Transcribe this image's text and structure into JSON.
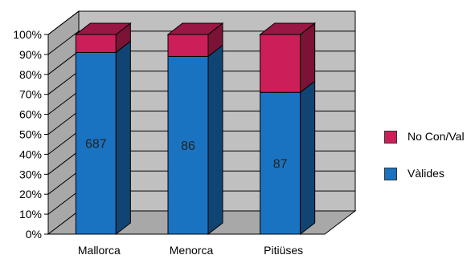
{
  "chart_data": {
    "type": "bar",
    "stacked": true,
    "percent_stacked": true,
    "three_d": true,
    "categories": [
      "Mallorca",
      "Menorca",
      "Pitiüses"
    ],
    "series": [
      {
        "name": "Vàlides",
        "values": [
          91,
          89,
          71
        ],
        "data_labels": [
          "687",
          "86",
          "87"
        ],
        "color": "#1a73c0"
      },
      {
        "name": "No Con/Val",
        "values": [
          9,
          11,
          29
        ],
        "color": "#cc1f5a"
      }
    ],
    "y_ticks": [
      "0%",
      "10%",
      "20%",
      "30%",
      "40%",
      "50%",
      "60%",
      "70%",
      "80%",
      "90%",
      "100%"
    ],
    "ylim": [
      0,
      100
    ],
    "grid": true,
    "legend_position": "right",
    "wall_color": "#c0c0c0"
  }
}
